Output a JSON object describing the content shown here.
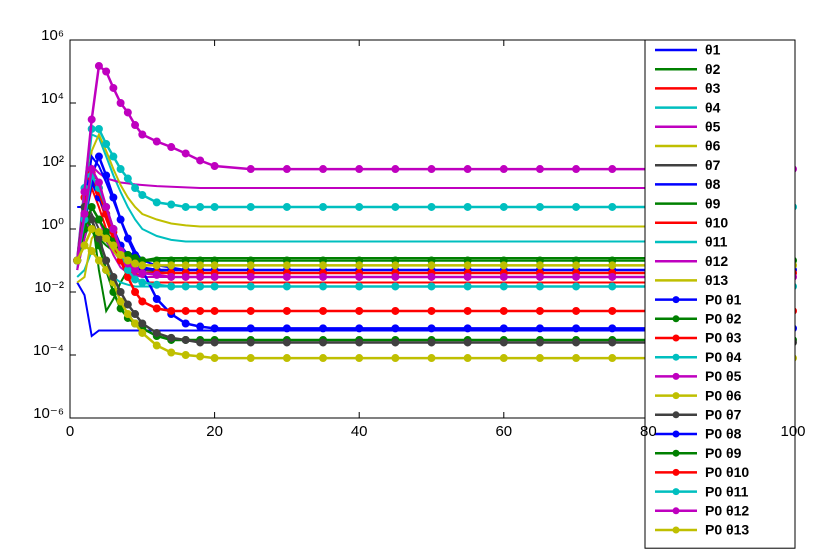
{
  "chart_data": {
    "type": "line",
    "yscale": "log",
    "xlim": [
      0,
      100
    ],
    "ylim": [
      1e-06,
      1000000
    ],
    "xticks": [
      0,
      20,
      40,
      60,
      80,
      100
    ],
    "yticks": [
      {
        "value": 1e-06,
        "label": "10⁻⁶"
      },
      {
        "value": 0.0001,
        "label": "10⁻⁴"
      },
      {
        "value": 0.01,
        "label": "10⁻²"
      },
      {
        "value": 1,
        "label": "10⁰"
      },
      {
        "value": 100,
        "label": "10²"
      },
      {
        "value": 10000,
        "label": "10⁴"
      },
      {
        "value": 1000000,
        "label": "10⁶"
      }
    ],
    "x": [
      1,
      2,
      3,
      4,
      5,
      6,
      7,
      8,
      9,
      10,
      12,
      14,
      16,
      18,
      20,
      25,
      30,
      35,
      40,
      45,
      50,
      55,
      60,
      65,
      70,
      75,
      80,
      85,
      90,
      95,
      100
    ],
    "series": [
      {
        "name": "θ1",
        "color": "#0000ff",
        "marker": false,
        "values": [
          0.02,
          0.008,
          0.0004,
          0.0006,
          0.0006,
          0.0006,
          0.0006,
          0.0006,
          0.0006,
          0.0006,
          0.0006,
          0.0006,
          0.0006,
          0.0006,
          0.0006,
          0.0006,
          0.0006,
          0.0006,
          0.0006,
          0.0006,
          0.0006,
          0.0006,
          0.0006,
          0.0006,
          0.0006,
          0.0006,
          0.0006,
          0.0006,
          0.0006,
          0.0006,
          0.0006
        ]
      },
      {
        "name": "θ2",
        "color": "#008000",
        "marker": false,
        "values": [
          0.1,
          0.5,
          3,
          0.05,
          0.0025,
          0.006,
          0.02,
          0.05,
          0.08,
          0.1,
          0.12,
          0.12,
          0.12,
          0.12,
          0.12,
          0.12,
          0.12,
          0.12,
          0.12,
          0.12,
          0.12,
          0.12,
          0.12,
          0.12,
          0.12,
          0.12,
          0.12,
          0.12,
          0.12,
          0.12,
          0.12
        ]
      },
      {
        "name": "θ3",
        "color": "#ff0000",
        "marker": false,
        "values": [
          0.1,
          5,
          40,
          10,
          2,
          0.5,
          0.15,
          0.06,
          0.03,
          0.02,
          0.02,
          0.02,
          0.02,
          0.02,
          0.02,
          0.02,
          0.02,
          0.02,
          0.02,
          0.02,
          0.02,
          0.02,
          0.02,
          0.02,
          0.02,
          0.02,
          0.02,
          0.02,
          0.02,
          0.02,
          0.02
        ]
      },
      {
        "name": "θ4",
        "color": "#00bfbf",
        "marker": false,
        "values": [
          0.05,
          10,
          1000,
          800,
          200,
          50,
          15,
          5,
          2,
          1,
          0.6,
          0.45,
          0.4,
          0.4,
          0.4,
          0.4,
          0.4,
          0.4,
          0.4,
          0.4,
          0.4,
          0.4,
          0.4,
          0.4,
          0.4,
          0.4,
          0.4,
          0.4,
          0.4,
          0.4,
          0.4
        ]
      },
      {
        "name": "θ5",
        "color": "#bf00bf",
        "marker": false,
        "values": [
          0.05,
          1,
          100,
          60,
          40,
          35,
          30,
          28,
          26,
          25,
          23,
          22,
          21,
          20,
          20,
          20,
          20,
          20,
          20,
          20,
          20,
          20,
          20,
          20,
          20,
          20,
          20,
          20,
          20,
          20,
          20
        ]
      },
      {
        "name": "θ6",
        "color": "#bfbf00",
        "marker": false,
        "values": [
          0.1,
          2,
          300,
          1000,
          300,
          80,
          25,
          10,
          5,
          3,
          2,
          1.5,
          1.3,
          1.2,
          1.2,
          1.2,
          1.2,
          1.2,
          1.2,
          1.2,
          1.2,
          1.2,
          1.2,
          1.2,
          1.2,
          1.2,
          1.2,
          1.2,
          1.2,
          1.2,
          1.2
        ]
      },
      {
        "name": "θ7",
        "color": "#404040",
        "marker": false,
        "values": [
          0.1,
          1,
          3,
          1,
          0.4,
          0.2,
          0.1,
          0.07,
          0.06,
          0.05,
          0.045,
          0.04,
          0.04,
          0.04,
          0.04,
          0.04,
          0.04,
          0.04,
          0.04,
          0.04,
          0.04,
          0.04,
          0.04,
          0.04,
          0.04,
          0.04,
          0.04,
          0.04,
          0.04,
          0.04,
          0.04
        ]
      },
      {
        "name": "θ8",
        "color": "#0000ff",
        "marker": false,
        "values": [
          5,
          5,
          200,
          100,
          30,
          8,
          2,
          0.6,
          0.2,
          0.1,
          0.07,
          0.06,
          0.05,
          0.05,
          0.05,
          0.05,
          0.05,
          0.05,
          0.05,
          0.05,
          0.05,
          0.05,
          0.05,
          0.05,
          0.05,
          0.05,
          0.05,
          0.05,
          0.05,
          0.05,
          0.05
        ]
      },
      {
        "name": "θ9",
        "color": "#008000",
        "marker": false,
        "values": [
          0.1,
          0.3,
          1,
          0.5,
          0.3,
          0.2,
          0.15,
          0.12,
          0.1,
          0.1,
          0.1,
          0.1,
          0.1,
          0.1,
          0.1,
          0.1,
          0.1,
          0.1,
          0.1,
          0.1,
          0.1,
          0.1,
          0.1,
          0.1,
          0.1,
          0.1,
          0.1,
          0.1,
          0.1,
          0.1,
          0.1
        ]
      },
      {
        "name": "θ10",
        "color": "#ff0000",
        "marker": false,
        "values": [
          0.1,
          2,
          20,
          5,
          1,
          0.3,
          0.1,
          0.05,
          0.04,
          0.03,
          0.03,
          0.03,
          0.03,
          0.03,
          0.03,
          0.03,
          0.03,
          0.03,
          0.03,
          0.03,
          0.03,
          0.03,
          0.03,
          0.03,
          0.03,
          0.03,
          0.03,
          0.03,
          0.03,
          0.03,
          0.03
        ]
      },
      {
        "name": "θ11",
        "color": "#00bfbf",
        "marker": false,
        "values": [
          0.03,
          0.05,
          0.2,
          0.1,
          0.05,
          0.03,
          0.02,
          0.017,
          0.015,
          0.015,
          0.015,
          0.015,
          0.015,
          0.015,
          0.015,
          0.015,
          0.015,
          0.015,
          0.015,
          0.015,
          0.015,
          0.015,
          0.015,
          0.015,
          0.015,
          0.015,
          0.015,
          0.015,
          0.015,
          0.015,
          0.015
        ]
      },
      {
        "name": "θ12",
        "color": "#bf00bf",
        "marker": false,
        "values": [
          0.05,
          0.5,
          5,
          2,
          0.5,
          0.15,
          0.06,
          0.04,
          0.035,
          0.03,
          0.03,
          0.03,
          0.03,
          0.03,
          0.03,
          0.03,
          0.03,
          0.03,
          0.03,
          0.03,
          0.03,
          0.03,
          0.03,
          0.03,
          0.03,
          0.03,
          0.03,
          0.03,
          0.03,
          0.03,
          0.03
        ]
      },
      {
        "name": "θ13",
        "color": "#bfbf00",
        "marker": false,
        "values": [
          0.02,
          0.03,
          0.5,
          1,
          0.5,
          0.2,
          0.1,
          0.08,
          0.07,
          0.07,
          0.07,
          0.07,
          0.07,
          0.07,
          0.07,
          0.07,
          0.07,
          0.07,
          0.07,
          0.07,
          0.07,
          0.07,
          0.07,
          0.07,
          0.07,
          0.07,
          0.07,
          0.07,
          0.07,
          0.07,
          0.07
        ]
      },
      {
        "name": "P0 θ1",
        "color": "#0000ff",
        "marker": true,
        "values": [
          0.1,
          1,
          50,
          200,
          50,
          10,
          2,
          0.5,
          0.15,
          0.05,
          0.006,
          0.002,
          0.001,
          0.0008,
          0.0007,
          0.0007,
          0.0007,
          0.0007,
          0.0007,
          0.0007,
          0.0007,
          0.0007,
          0.0007,
          0.0007,
          0.0007,
          0.0007,
          0.0007,
          0.0007,
          0.0007,
          0.0007,
          0.0007
        ]
      },
      {
        "name": "P0 θ2",
        "color": "#008000",
        "marker": true,
        "values": [
          0.1,
          3,
          1,
          0.3,
          0.05,
          0.01,
          0.003,
          0.0015,
          0.001,
          0.0007,
          0.0004,
          0.0003,
          0.0003,
          0.0003,
          0.0003,
          0.0003,
          0.0003,
          0.0003,
          0.0003,
          0.0003,
          0.0003,
          0.0003,
          0.0003,
          0.0003,
          0.0003,
          0.0003,
          0.0003,
          0.0003,
          0.0003,
          0.0003,
          0.0003
        ]
      },
      {
        "name": "P0 θ3",
        "color": "#ff0000",
        "marker": true,
        "values": [
          0.1,
          10,
          40,
          20,
          3,
          0.5,
          0.1,
          0.03,
          0.01,
          0.005,
          0.003,
          0.0025,
          0.0025,
          0.0025,
          0.0025,
          0.0025,
          0.0025,
          0.0025,
          0.0025,
          0.0025,
          0.0025,
          0.0025,
          0.0025,
          0.0025,
          0.0025,
          0.0025,
          0.0025,
          0.0025,
          0.0025,
          0.0025,
          0.0025
        ]
      },
      {
        "name": "P0 θ4",
        "color": "#00bfbf",
        "marker": true,
        "values": [
          0.1,
          20,
          1500,
          1500,
          500,
          200,
          80,
          40,
          20,
          12,
          7,
          6,
          5,
          5,
          5,
          5,
          5,
          5,
          5,
          5,
          5,
          5,
          5,
          5,
          5,
          5,
          5,
          5,
          5,
          5,
          5
        ]
      },
      {
        "name": "P0 θ5",
        "color": "#bf00bf",
        "marker": true,
        "values": [
          0.1,
          15,
          3000,
          150000,
          100000,
          30000,
          10000,
          5000,
          2000,
          1000,
          600,
          400,
          250,
          150,
          100,
          80,
          80,
          80,
          80,
          80,
          80,
          80,
          80,
          80,
          80,
          80,
          80,
          80,
          80,
          80,
          80
        ]
      },
      {
        "name": "P0 θ6",
        "color": "#bfbf00",
        "marker": true,
        "values": [
          0.1,
          0.3,
          0.2,
          0.1,
          0.05,
          0.02,
          0.005,
          0.002,
          0.001,
          0.0005,
          0.0002,
          0.00012,
          0.0001,
          9e-05,
          8e-05,
          8e-05,
          8e-05,
          8e-05,
          8e-05,
          8e-05,
          8e-05,
          8e-05,
          8e-05,
          8e-05,
          8e-05,
          8e-05,
          8e-05,
          8e-05,
          8e-05,
          8e-05,
          8e-05
        ]
      },
      {
        "name": "P0 θ7",
        "color": "#404040",
        "marker": true,
        "values": [
          0.1,
          5,
          2,
          0.5,
          0.1,
          0.03,
          0.01,
          0.004,
          0.002,
          0.001,
          0.0005,
          0.00035,
          0.0003,
          0.00025,
          0.00025,
          0.00025,
          0.00025,
          0.00025,
          0.00025,
          0.00025,
          0.00025,
          0.00025,
          0.00025,
          0.00025,
          0.00025,
          0.00025,
          0.00025,
          0.00025,
          0.00025,
          0.00025,
          0.00025
        ]
      },
      {
        "name": "P0 θ8",
        "color": "#0000ff",
        "marker": true,
        "values": [
          0.1,
          2,
          30,
          10,
          3,
          1,
          0.3,
          0.15,
          0.08,
          0.06,
          0.05,
          0.05,
          0.05,
          0.05,
          0.05,
          0.05,
          0.05,
          0.05,
          0.05,
          0.05,
          0.05,
          0.05,
          0.05,
          0.05,
          0.05,
          0.05,
          0.05,
          0.05,
          0.05,
          0.05,
          0.05
        ]
      },
      {
        "name": "P0 θ9",
        "color": "#008000",
        "marker": true,
        "values": [
          0.1,
          1,
          5,
          2,
          0.8,
          0.4,
          0.2,
          0.15,
          0.12,
          0.1,
          0.1,
          0.1,
          0.1,
          0.1,
          0.1,
          0.1,
          0.1,
          0.1,
          0.1,
          0.1,
          0.1,
          0.1,
          0.1,
          0.1,
          0.1,
          0.1,
          0.1,
          0.1,
          0.1,
          0.1,
          0.1
        ]
      },
      {
        "name": "P0 θ10",
        "color": "#ff0000",
        "marker": true,
        "values": [
          0.1,
          3,
          60,
          15,
          3,
          0.8,
          0.2,
          0.08,
          0.05,
          0.04,
          0.04,
          0.04,
          0.04,
          0.04,
          0.04,
          0.04,
          0.04,
          0.04,
          0.04,
          0.04,
          0.04,
          0.04,
          0.04,
          0.04,
          0.04,
          0.04,
          0.04,
          0.04,
          0.04,
          0.04,
          0.04
        ]
      },
      {
        "name": "P0 θ11",
        "color": "#00bfbf",
        "marker": true,
        "values": [
          0.1,
          2,
          50,
          20,
          5,
          1,
          0.2,
          0.05,
          0.025,
          0.02,
          0.017,
          0.015,
          0.015,
          0.015,
          0.015,
          0.015,
          0.015,
          0.015,
          0.015,
          0.015,
          0.015,
          0.015,
          0.015,
          0.015,
          0.015,
          0.015,
          0.015,
          0.015,
          0.015,
          0.015,
          0.015
        ]
      },
      {
        "name": "P0 θ12",
        "color": "#bf00bf",
        "marker": true,
        "values": [
          0.1,
          3,
          80,
          30,
          5,
          1,
          0.2,
          0.08,
          0.05,
          0.04,
          0.035,
          0.03,
          0.03,
          0.03,
          0.03,
          0.03,
          0.03,
          0.03,
          0.03,
          0.03,
          0.03,
          0.03,
          0.03,
          0.03,
          0.03,
          0.03,
          0.03,
          0.03,
          0.03,
          0.03,
          0.03
        ]
      },
      {
        "name": "P0 θ13",
        "color": "#bfbf00",
        "marker": true,
        "values": [
          0.1,
          0.3,
          1,
          0.8,
          0.5,
          0.3,
          0.15,
          0.1,
          0.08,
          0.07,
          0.07,
          0.07,
          0.07,
          0.07,
          0.07,
          0.07,
          0.07,
          0.07,
          0.07,
          0.07,
          0.07,
          0.07,
          0.07,
          0.07,
          0.07,
          0.07,
          0.07,
          0.07,
          0.07,
          0.07,
          0.07
        ]
      }
    ]
  }
}
